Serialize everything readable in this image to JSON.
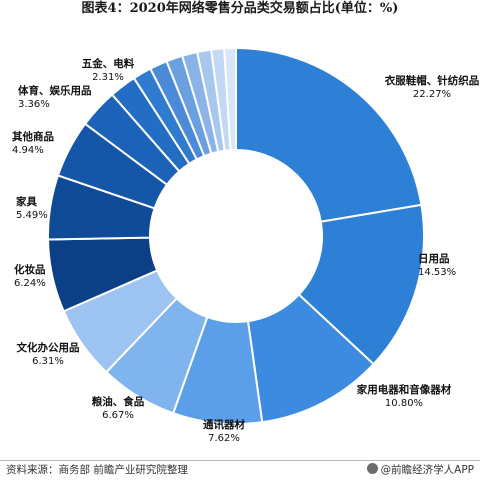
{
  "title": "图表4：2020年网络零售分品类交易额占比(单位：%)",
  "footer": {
    "source": "资料来源：商务部 前瞻产业研究院整理",
    "brand": "@前瞻经济学人APP"
  },
  "chart_data": {
    "type": "pie",
    "style": "donut",
    "start_angle": "12 o'clock",
    "direction": "clockwise",
    "slices": [
      {
        "label": "衣服鞋帽、针纺织品",
        "value": 22.27,
        "value_label": "22.27%",
        "color": "#2e7fd6"
      },
      {
        "label": "日用品",
        "value": 14.53,
        "value_label": "14.53%",
        "color": "#2e7fd6"
      },
      {
        "label": "家用电器和音像器材",
        "value": 10.8,
        "value_label": "10.80%",
        "color": "#3d8be0"
      },
      {
        "label": "通讯器材",
        "value": 7.62,
        "value_label": "7.62%",
        "color": "#5a9fe8"
      },
      {
        "label": "粮油、食品",
        "value": 6.67,
        "value_label": "6.67%",
        "color": "#7fb4ee"
      },
      {
        "label": "文化办公用品",
        "value": 6.31,
        "value_label": "6.31%",
        "color": "#9cc3f2"
      },
      {
        "label": "化妆品",
        "value": 6.24,
        "value_label": "6.24%",
        "color": "#0b3f86"
      },
      {
        "label": "家具",
        "value": 5.49,
        "value_label": "5.49%",
        "color": "#104b98"
      },
      {
        "label": "其他商品",
        "value": 4.94,
        "value_label": "4.94%",
        "color": "#1556a8"
      },
      {
        "label": "体育、娱乐用品",
        "value": 3.36,
        "value_label": "3.36%",
        "color": "#1b62b8"
      },
      {
        "label": "五金、电料",
        "value": 2.31,
        "value_label": "2.31%",
        "color": "#236ec4"
      },
      {
        "label": "",
        "value": 1.6,
        "value_label": "",
        "color": "#2f7bcf"
      },
      {
        "label": "",
        "value": 1.5,
        "value_label": "",
        "color": "#4a8ad8"
      },
      {
        "label": "",
        "value": 1.4,
        "value_label": "",
        "color": "#6a9fe0"
      },
      {
        "label": "",
        "value": 1.3,
        "value_label": "",
        "color": "#8ab3e8"
      },
      {
        "label": "",
        "value": 1.2,
        "value_label": "",
        "color": "#a8c7ee"
      },
      {
        "label": "",
        "value": 1.1,
        "value_label": "",
        "color": "#c2d8f4"
      },
      {
        "label": "",
        "value": 1.0,
        "value_label": "",
        "color": "#d7e6f8"
      }
    ]
  }
}
